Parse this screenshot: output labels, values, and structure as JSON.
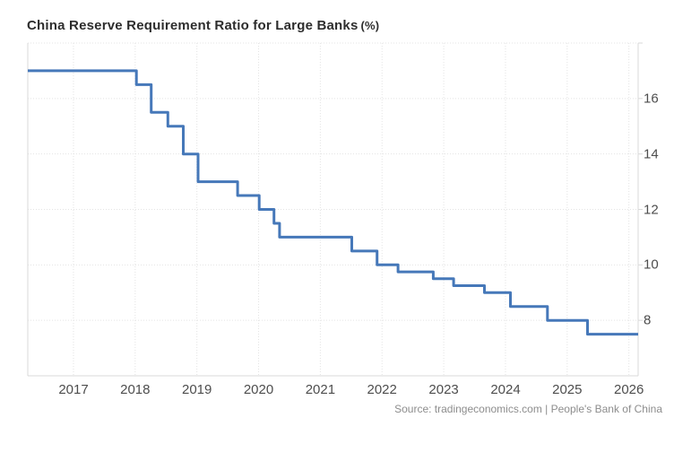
{
  "title": "China Reserve Requirement Ratio for Large Banks",
  "title_unit": "(%)",
  "source": "Source: tradingeconomics.com | People's Bank of China",
  "chart_data": {
    "type": "line",
    "subtype": "step-after",
    "title": "China Reserve Requirement Ratio for Large Banks (%)",
    "xlabel": "",
    "ylabel": "",
    "grid": "dotted",
    "legend": "none",
    "y_axis_side": "right",
    "xlim": [
      2016.26,
      2026.15
    ],
    "ylim": [
      6,
      18
    ],
    "x_ticks": [
      2017,
      2018,
      2019,
      2020,
      2021,
      2022,
      2023,
      2024,
      2025,
      2026
    ],
    "x_tick_labels": [
      "2017",
      "2018",
      "2019",
      "2020",
      "2021",
      "2022",
      "2023",
      "2024",
      "2025",
      "2026"
    ],
    "y_ticks": [
      8,
      10,
      12,
      14,
      16
    ],
    "y_tick_labels": [
      "8",
      "10",
      "12",
      "14",
      "16"
    ],
    "line_color": "#4678b9",
    "grid_color": "#e4e4e4",
    "border_color": "#d9d9d9",
    "series": [
      {
        "name": "Reserve Requirement Ratio for Large Banks (%)",
        "steps": [
          [
            2016.26,
            17.0
          ],
          [
            2018.02,
            16.5
          ],
          [
            2018.26,
            15.5
          ],
          [
            2018.53,
            15.0
          ],
          [
            2018.78,
            14.0
          ],
          [
            2019.02,
            13.0
          ],
          [
            2019.66,
            12.5
          ],
          [
            2020.01,
            12.0
          ],
          [
            2020.25,
            11.5
          ],
          [
            2020.34,
            11.0
          ],
          [
            2021.51,
            10.5
          ],
          [
            2021.92,
            10.0
          ],
          [
            2022.26,
            9.75
          ],
          [
            2022.83,
            9.5
          ],
          [
            2023.16,
            9.25
          ],
          [
            2023.66,
            9.0
          ],
          [
            2024.08,
            8.5
          ],
          [
            2024.68,
            8.0
          ],
          [
            2025.33,
            7.5
          ]
        ],
        "end_x": 2026.15
      }
    ]
  }
}
